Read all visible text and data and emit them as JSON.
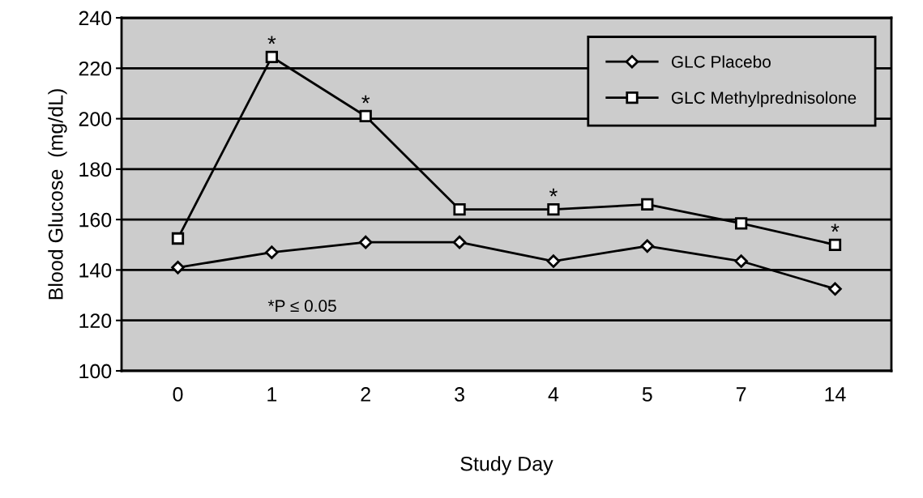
{
  "chart_data": {
    "type": "line",
    "xlabel": "Study Day",
    "ylabel": "Blood Glucose  (mg/dL)",
    "categories": [
      "0",
      "1",
      "2",
      "3",
      "4",
      "5",
      "7",
      "14"
    ],
    "series": [
      {
        "name": "GLC Placebo",
        "color": "#000000",
        "marker": "diamond",
        "values": [
          141,
          147,
          151,
          151,
          143.5,
          149.5,
          143.5,
          132.5
        ]
      },
      {
        "name": "GLC Methylprednisolone",
        "color": "#000000",
        "marker": "square",
        "values": [
          152.5,
          224.5,
          201,
          164,
          164,
          166,
          158.5,
          150
        ]
      }
    ],
    "ylim": [
      100,
      240
    ],
    "yticks": [
      100,
      120,
      140,
      160,
      180,
      200,
      220,
      240
    ],
    "grid": "y",
    "legend": "top right",
    "line_style": "solid",
    "annotations": [
      {
        "text": "*",
        "x": "1",
        "y": 224.5
      },
      {
        "text": "*",
        "x": "2",
        "y": 201
      },
      {
        "text": "*",
        "x": "4",
        "y": 164
      },
      {
        "text": "*",
        "x": "14",
        "y": 150
      },
      "*P ≤ 0.05"
    ]
  }
}
